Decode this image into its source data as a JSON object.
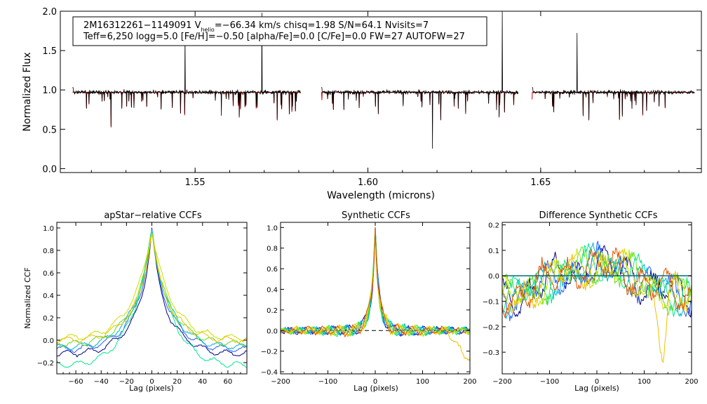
{
  "chart_data": [
    {
      "type": "line",
      "id": "spectrum",
      "title": "",
      "xlabel": "Wavelength (microns)",
      "ylabel": "Normalized Flux",
      "xlim": [
        1.511,
        1.6965
      ],
      "ylim": [
        -0.05,
        2.0
      ],
      "xticks": [
        1.55,
        1.6,
        1.65
      ],
      "xtick_labels": [
        "1.55",
        "1.60",
        "1.65"
      ],
      "yticks": [
        0.0,
        0.5,
        1.0,
        1.5,
        2.0
      ],
      "ytick_labels": [
        "0.0",
        "0.5",
        "1.0",
        "1.5",
        "2.0"
      ],
      "chips": [
        [
          1.5145,
          1.5805
        ],
        [
          1.5865,
          1.6435
        ],
        [
          1.6475,
          1.6945
        ]
      ],
      "series": [
        {
          "name": "observed",
          "color": "#000000"
        },
        {
          "name": "model",
          "color": "#cc0000"
        }
      ],
      "info": {
        "line1_a": "2M16312261−1149091  V",
        "line1_sub": "helio",
        "line1_b": "=−66.34 km/s  chisq=1.98  S/N=64.1  Nvisits=7",
        "line2": "Teff=6,250 logg=5.0 [Fe/H]=−0.50 [alpha/Fe]=0.0 [C/Fe]=0.0 FW=27 AUTOFW=27"
      }
    },
    {
      "type": "line",
      "id": "apstar_ccf",
      "title": "apStar−relative CCFs",
      "xlabel": "Lag (pixels)",
      "ylabel": "Normalized CCF",
      "xlim": [
        -75,
        75
      ],
      "ylim": [
        -0.3,
        1.05
      ],
      "xticks": [
        -60,
        -40,
        -20,
        0,
        20,
        40,
        60
      ],
      "xtick_labels": [
        "−60",
        "−40",
        "−20",
        "0",
        "20",
        "40",
        "60"
      ],
      "yticks": [
        -0.2,
        0.0,
        0.2,
        0.4,
        0.6,
        0.8,
        1.0
      ],
      "ytick_labels": [
        "−0.2",
        "0.0",
        "0.2",
        "0.4",
        "0.6",
        "0.8",
        "1.0"
      ],
      "series": [
        {
          "name": "visit 1",
          "color": "#000088",
          "floor": -0.12,
          "width": 7.0
        },
        {
          "name": "visit 2",
          "color": "#1f5fff",
          "floor": -0.08,
          "width": 8.0
        },
        {
          "name": "visit 3",
          "color": "#00b4d0",
          "floor": -0.06,
          "width": 9.0
        },
        {
          "name": "visit 4",
          "color": "#00e890",
          "floor": -0.22,
          "width": 11.0
        },
        {
          "name": "visit 5",
          "color": "#60dd20",
          "floor": -0.03,
          "width": 8.5
        },
        {
          "name": "visit 6",
          "color": "#c8e000",
          "floor": 0.02,
          "width": 10.0
        },
        {
          "name": "visit 7",
          "color": "#f0c000",
          "floor": 0.0,
          "width": 7.5
        }
      ]
    },
    {
      "type": "line",
      "id": "synthetic_ccf",
      "title": "Synthetic CCFs",
      "xlabel": "Lag (pixels)",
      "ylabel": "",
      "xlim": [
        -200,
        200
      ],
      "ylim": [
        -0.42,
        1.05
      ],
      "xticks": [
        -200,
        -100,
        0,
        100,
        200
      ],
      "xtick_labels": [
        "−200",
        "−100",
        "0",
        "100",
        "200"
      ],
      "yticks": [
        -0.4,
        -0.2,
        0.0,
        0.2,
        0.4,
        0.6,
        0.8,
        1.0
      ],
      "ytick_labels": [
        "−0.4",
        "−0.2",
        "0.0",
        "0.2",
        "0.4",
        "0.6",
        "0.8",
        "1.0"
      ],
      "zero_line": true,
      "series": [
        {
          "name": "visit 1",
          "color": "#000088"
        },
        {
          "name": "visit 2",
          "color": "#1f5fff"
        },
        {
          "name": "visit 3",
          "color": "#00b4d0"
        },
        {
          "name": "visit 4",
          "color": "#00e890"
        },
        {
          "name": "visit 5",
          "color": "#60dd20"
        },
        {
          "name": "visit 6",
          "color": "#c8e000"
        },
        {
          "name": "visit 7",
          "color": "#f0c000"
        },
        {
          "name": "visit 8",
          "color": "#e05000"
        }
      ]
    },
    {
      "type": "line",
      "id": "difference_ccf",
      "title": "Difference Synthetic CCFs",
      "xlabel": "Lag (pixels)",
      "ylabel": "",
      "xlim": [
        -200,
        200
      ],
      "ylim": [
        -0.385,
        0.21
      ],
      "xticks": [
        -200,
        -100,
        0,
        100,
        200
      ],
      "xtick_labels": [
        "−200",
        "−100",
        "0",
        "100",
        "200"
      ],
      "yticks": [
        -0.3,
        -0.2,
        -0.1,
        0.0,
        0.1,
        0.2
      ],
      "ytick_labels": [
        "−0.3",
        "−0.2",
        "−0.1",
        "0.0",
        "0.1",
        "0.2"
      ],
      "zero_line": true,
      "series": [
        {
          "name": "visit 1",
          "color": "#000088"
        },
        {
          "name": "visit 2",
          "color": "#1f5fff"
        },
        {
          "name": "visit 3",
          "color": "#00b4d0"
        },
        {
          "name": "visit 4",
          "color": "#00e890"
        },
        {
          "name": "visit 5",
          "color": "#60dd20"
        },
        {
          "name": "visit 6",
          "color": "#c8e000"
        },
        {
          "name": "visit 7",
          "color": "#f0c000"
        },
        {
          "name": "visit 8",
          "color": "#e05000"
        }
      ]
    }
  ]
}
